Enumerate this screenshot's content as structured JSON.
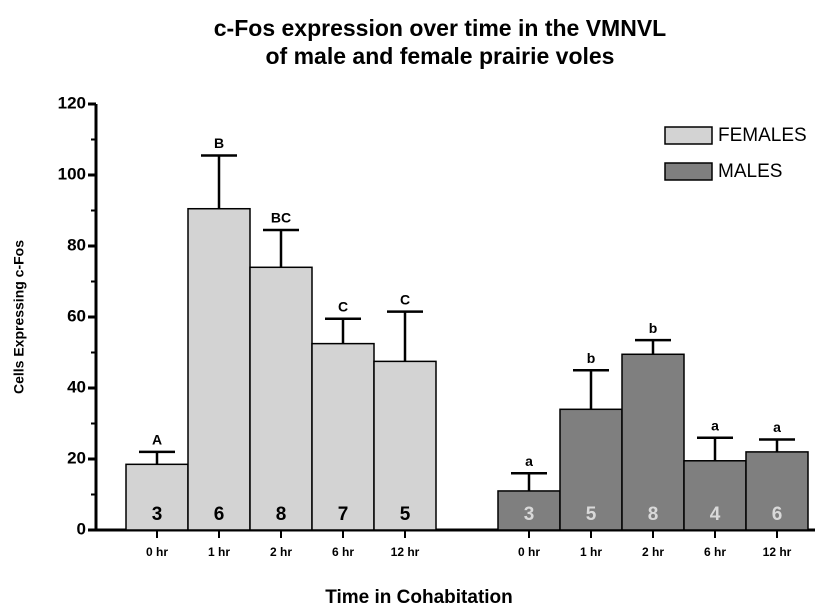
{
  "chart_data": {
    "type": "bar",
    "title": [
      "c-Fos expression over time in the VMNVL",
      "of male and female prairie voles"
    ],
    "xlabel": "Time in Cohabitation",
    "ylabel": "Cells Expressing c-Fos",
    "ylim": [
      0,
      120
    ],
    "yticks": [
      0,
      20,
      40,
      60,
      80,
      100,
      120
    ],
    "yminorticks": [
      10,
      30,
      50,
      70,
      90,
      110
    ],
    "legend": "top-right",
    "series": [
      {
        "name": "FEMALES",
        "color": "#d3d3d3",
        "label_color": "#000000",
        "categories": [
          "0 hr",
          "1 hr",
          "2 hr",
          "6 hr",
          "12 hr"
        ],
        "values": [
          18.5,
          90.5,
          74,
          52.5,
          47.5
        ],
        "errors": [
          3.5,
          15,
          10.5,
          7,
          14
        ],
        "letters": [
          "A",
          "B",
          "BC",
          "C",
          "C"
        ],
        "n": [
          3,
          6,
          8,
          7,
          5
        ]
      },
      {
        "name": "MALES",
        "color": "#7f7f7f",
        "label_color": "#d9d9d9",
        "categories": [
          "0 hr",
          "1 hr",
          "2 hr",
          "6 hr",
          "12 hr"
        ],
        "values": [
          11,
          34,
          49.5,
          19.5,
          22
        ],
        "errors": [
          5,
          11,
          4,
          6.5,
          3.5
        ],
        "letters": [
          "a",
          "b",
          "b",
          "a",
          "a"
        ],
        "n": [
          3,
          5,
          8,
          4,
          6
        ]
      }
    ]
  }
}
